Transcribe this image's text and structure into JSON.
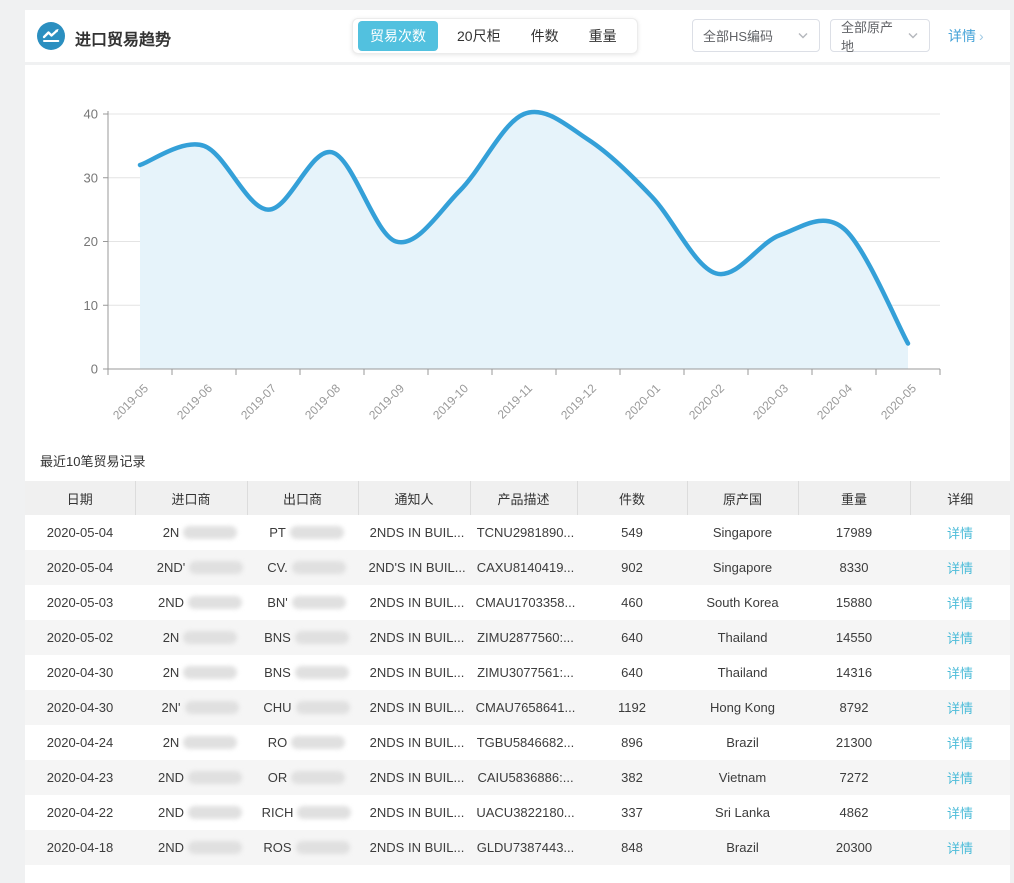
{
  "header": {
    "title": "进口贸易趋势",
    "icon": "trend-chart-icon",
    "tabs": [
      {
        "label": "贸易次数",
        "active": true
      },
      {
        "label": "20尺柜",
        "active": false
      },
      {
        "label": "件数",
        "active": false
      },
      {
        "label": "重量",
        "active": false
      }
    ],
    "filters": [
      {
        "label": "全部HS编码"
      },
      {
        "label": "全部原产地"
      }
    ],
    "detail_link": "详情",
    "detail_arrow": "›"
  },
  "colors": {
    "accent_teal": "#52c1df",
    "line_blue": "#34a0d8",
    "area_fill": "#e6f3fa",
    "grid": "#e4e4e4",
    "axis": "#999999",
    "link_blue": "#45a3d8",
    "link_teal": "#4cbcd9",
    "icon_circle": "#2b8fc0"
  },
  "chart_data": {
    "type": "area",
    "title": "",
    "xlabel": "",
    "ylabel": "",
    "x": [
      "2019-05",
      "2019-06",
      "2019-07",
      "2019-08",
      "2019-09",
      "2019-10",
      "2019-11",
      "2019-12",
      "2020-01",
      "2020-02",
      "2020-03",
      "2020-04",
      "2020-05"
    ],
    "series": [
      {
        "name": "贸易次数",
        "values": [
          32,
          35,
          25,
          34,
          20,
          28,
          40,
          36,
          27,
          15,
          21,
          22,
          4
        ]
      }
    ],
    "ylim": [
      0,
      40
    ],
    "yticks": [
      0,
      10,
      20,
      30,
      40
    ],
    "grid": true,
    "legend_position": "none",
    "smooth": true
  },
  "table": {
    "caption": "最近10笔贸易记录",
    "columns": [
      "日期",
      "进口商",
      "出口商",
      "通知人",
      "产品描述",
      "件数",
      "原产国",
      "重量",
      "详细"
    ],
    "detail_label": "详情",
    "rows": [
      {
        "date": "2020-05-04",
        "importer": "2N",
        "exporter": "PT",
        "notify": "2NDS IN BUIL...",
        "product": "TCNU2981890...",
        "pieces": "549",
        "origin": "Singapore",
        "weight": "17989"
      },
      {
        "date": "2020-05-04",
        "importer": "2ND'",
        "exporter": "CV.",
        "notify": "2ND'S IN BUIL...",
        "product": "CAXU8140419...",
        "pieces": "902",
        "origin": "Singapore",
        "weight": "8330"
      },
      {
        "date": "2020-05-03",
        "importer": "2ND",
        "exporter": "BN'",
        "notify": "2NDS IN BUIL...",
        "product": "CMAU1703358...",
        "pieces": "460",
        "origin": "South Korea",
        "weight": "15880"
      },
      {
        "date": "2020-05-02",
        "importer": "2N",
        "exporter": "BNS",
        "notify": "2NDS IN BUIL...",
        "product": "ZIMU2877560:...",
        "pieces": "640",
        "origin": "Thailand",
        "weight": "14550"
      },
      {
        "date": "2020-04-30",
        "importer": "2N",
        "exporter": "BNS",
        "notify": "2NDS IN BUIL...",
        "product": "ZIMU3077561:...",
        "pieces": "640",
        "origin": "Thailand",
        "weight": "14316"
      },
      {
        "date": "2020-04-30",
        "importer": "2N'",
        "exporter": "CHU",
        "notify": "2NDS IN BUIL...",
        "product": "CMAU7658641...",
        "pieces": "1192",
        "origin": "Hong Kong",
        "weight": "8792"
      },
      {
        "date": "2020-04-24",
        "importer": "2N",
        "exporter": "RO",
        "notify": "2NDS IN BUIL...",
        "product": "TGBU5846682...",
        "pieces": "896",
        "origin": "Brazil",
        "weight": "21300"
      },
      {
        "date": "2020-04-23",
        "importer": "2ND",
        "exporter": "OR",
        "notify": "2NDS IN BUIL...",
        "product": "CAIU5836886:...",
        "pieces": "382",
        "origin": "Vietnam",
        "weight": "7272"
      },
      {
        "date": "2020-04-22",
        "importer": "2ND",
        "exporter": "RICH",
        "notify": "2NDS IN BUIL...",
        "product": "UACU3822180...",
        "pieces": "337",
        "origin": "Sri Lanka",
        "weight": "4862"
      },
      {
        "date": "2020-04-18",
        "importer": "2ND",
        "exporter": "ROS",
        "notify": "2NDS IN BUIL...",
        "product": "GLDU7387443...",
        "pieces": "848",
        "origin": "Brazil",
        "weight": "20300"
      }
    ]
  }
}
